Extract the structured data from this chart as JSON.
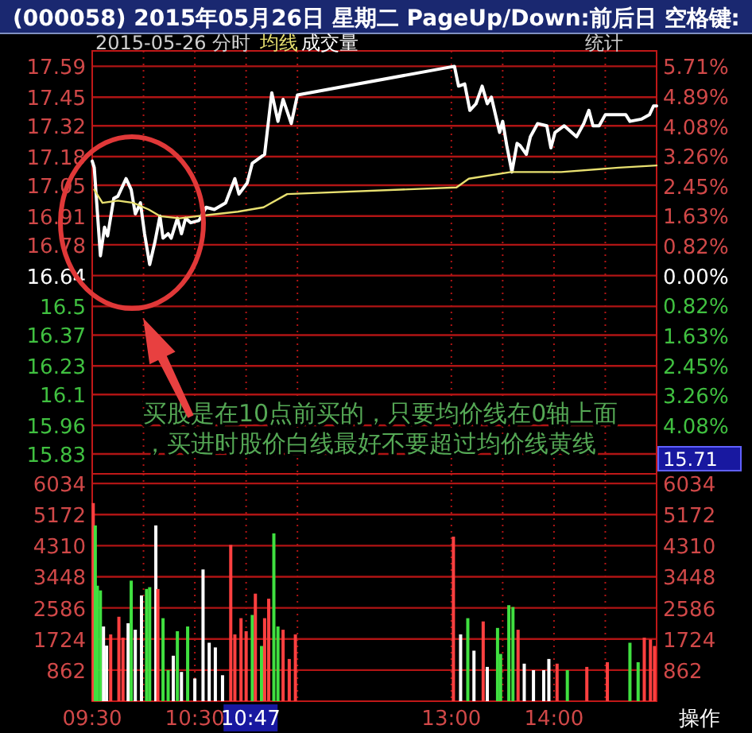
{
  "chart_data": [
    {
      "type": "line",
      "title": "(000058) 2015年05月26日 星期二 PageUp/Down:前后日 空格键:",
      "subtitle": "2015-05-26 分时",
      "legend": "top left",
      "grid": true,
      "tick_labels": "y",
      "xlim": [
        9.5,
        15
      ],
      "xticks": [
        {
          "value": 9.5,
          "label": null
        },
        {
          "value": 10,
          "label": null
        },
        {
          "value": 10.5,
          "label": null
        },
        {
          "value": 11,
          "label": null
        },
        {
          "value": 11.5,
          "label": null
        },
        {
          "value": 13,
          "label": null
        },
        {
          "value": 13.5,
          "label": null
        },
        {
          "value": 14,
          "label": null
        },
        {
          "value": 14.5,
          "label": null
        },
        {
          "value": 15,
          "label": null
        }
      ],
      "ylim": [
        15.74,
        17.66
      ],
      "yticks": [
        17.59,
        17.45,
        17.32,
        17.18,
        17.05,
        16.91,
        16.78,
        16.64,
        16.5,
        16.37,
        16.23,
        16.1,
        15.96,
        15.83
      ],
      "y2lim": [
        -5.41,
        6.13
      ],
      "y2ticks": [
        {
          "value": 5.71,
          "label": "5.71%"
        },
        {
          "value": 4.89,
          "label": "4.89%"
        },
        {
          "value": 4.08,
          "label": "4.08%"
        },
        {
          "value": 3.26,
          "label": "3.26%"
        },
        {
          "value": 2.45,
          "label": "2.45%"
        },
        {
          "value": 1.63,
          "label": "1.63%"
        },
        {
          "value": 0.82,
          "label": "0.82%"
        },
        {
          "value": 0,
          "label": "0.00%"
        },
        {
          "value": -0.82,
          "label": "0.82%"
        },
        {
          "value": -1.63,
          "label": "1.63%"
        },
        {
          "value": -2.45,
          "label": "2.45%"
        },
        {
          "value": -3.26,
          "label": "3.26%"
        },
        {
          "value": -4.08,
          "label": "4.08%"
        }
      ],
      "series": [
        {
          "color": "#ffffff",
          "x": [
            9.5,
            9.52,
            9.55,
            9.58,
            9.62,
            9.65,
            9.71,
            9.75,
            9.83,
            9.88,
            9.92,
            9.97,
            10.01,
            10.06,
            10.11,
            10.16,
            10.19,
            10.24,
            10.27,
            10.33,
            10.37,
            10.41,
            10.46,
            10.54,
            10.61,
            10.69,
            10.8,
            10.89,
            10.93,
            11.01,
            11.06,
            11.18,
            11.25,
            11.31,
            11.36,
            11.44,
            11.5,
            13.03,
            13.07,
            13.13,
            13.18,
            13.24,
            13.3,
            13.35,
            13.39,
            13.47,
            13.5,
            13.54,
            13.59,
            13.64,
            13.67,
            13.73,
            13.77,
            13.84,
            13.93,
            13.97,
            14.01,
            14.1,
            14.22,
            14.29,
            14.34,
            14.38,
            14.44,
            14.5,
            14.59,
            14.7,
            14.74,
            14.85,
            14.93,
            14.97,
            15
          ],
          "values": [
            17.16,
            17.13,
            16.93,
            16.73,
            16.86,
            16.82,
            16.99,
            17.0,
            17.08,
            17.03,
            16.92,
            16.97,
            16.83,
            16.69,
            16.79,
            16.91,
            16.81,
            16.83,
            16.81,
            16.9,
            16.83,
            16.9,
            16.88,
            16.89,
            16.95,
            16.94,
            16.97,
            17.08,
            17.01,
            17.06,
            17.15,
            17.19,
            17.47,
            17.34,
            17.44,
            17.33,
            17.46,
            17.59,
            17.5,
            17.51,
            17.39,
            17.42,
            17.5,
            17.42,
            17.45,
            17.29,
            17.34,
            17.23,
            17.11,
            17.24,
            17.23,
            17.19,
            17.27,
            17.33,
            17.32,
            17.22,
            17.29,
            17.32,
            17.27,
            17.33,
            17.39,
            17.32,
            17.32,
            17.37,
            17.37,
            17.37,
            17.34,
            17.35,
            17.37,
            17.41,
            17.41
          ]
        },
        {
          "name": "均线",
          "color": "#e8e070",
          "x": [
            9.52,
            9.6,
            9.75,
            9.9,
            10.05,
            10.16,
            10.35,
            10.53,
            10.92,
            11.17,
            11.4,
            13.05,
            13.17,
            13.58,
            14.07,
            14.63,
            15
          ],
          "values": [
            17.03,
            16.97,
            16.98,
            16.97,
            16.94,
            16.91,
            16.9,
            16.91,
            16.93,
            16.95,
            17.01,
            17.04,
            17.08,
            17.11,
            17.11,
            17.13,
            17.14
          ]
        }
      ],
      "annotations": [
        "统计",
        "15.71",
        "买股是在10点前买的，只要均价线在0轴上面，买进时股价白线最好不要超过均价线黄线"
      ]
    },
    {
      "type": "bar",
      "legend": "top left",
      "grid": true,
      "xlim": [
        9.5,
        15
      ],
      "xticks": [
        {
          "value": 9.5,
          "label": "09:30"
        },
        {
          "value": 10,
          "label": null
        },
        {
          "value": 10.5,
          "label": "10:30"
        },
        {
          "value": 11,
          "label": null
        },
        {
          "value": 11.5,
          "label": null
        },
        {
          "value": 13,
          "label": "13:00"
        },
        {
          "value": 13.5,
          "label": null
        },
        {
          "value": 14,
          "label": "14:00"
        },
        {
          "value": 14.5,
          "label": null
        },
        {
          "value": 15,
          "label": null
        }
      ],
      "ylim": [
        0,
        6300
      ],
      "yticks": [
        862,
        1724,
        2586,
        3448,
        4310,
        5172,
        6034
      ],
      "y2lim": [
        0,
        6300
      ],
      "y2ticks": [
        862,
        1724,
        2586,
        3448,
        4310,
        5172,
        6034
      ],
      "series": [
        {
          "name": "成交量",
          "x": [
            9.51,
            9.53,
            9.55,
            9.58,
            9.61,
            9.64,
            9.68,
            9.76,
            9.8,
            9.85,
            9.88,
            9.92,
            9.98,
            10.03,
            10.06,
            10.12,
            10.14,
            10.19,
            10.24,
            10.29,
            10.33,
            10.37,
            10.43,
            10.5,
            10.58,
            10.64,
            10.7,
            10.77,
            10.85,
            10.89,
            10.95,
            11,
            11.06,
            11.09,
            11.15,
            11.18,
            11.22,
            11.27,
            11.31,
            11.36,
            11.42,
            11.48,
            13.02,
            13.09,
            13.16,
            13.22,
            13.31,
            13.35,
            13.45,
            13.48,
            13.56,
            13.6,
            13.65,
            13.71,
            13.8,
            13.9,
            13.95,
            14.03,
            14.13,
            14.32,
            14.52,
            14.74,
            14.82,
            14.88,
            14.94,
            14.98
          ],
          "values": [
            5490,
            4870,
            3200,
            3070,
            2070,
            1540,
            1850,
            2340,
            1760,
            2160,
            3340,
            1980,
            2930,
            3110,
            3160,
            4870,
            3110,
            2300,
            860,
            1260,
            1940,
            810,
            2070,
            630,
            3650,
            1620,
            1490,
            720,
            4330,
            1850,
            2300,
            1940,
            2390,
            2980,
            1530,
            2300,
            2840,
            4650,
            2070,
            1980,
            1170,
            1850,
            4560,
            1850,
            2300,
            1400,
            2210,
            950,
            2030,
            1310,
            2660,
            2610,
            1980,
            1040,
            860,
            860,
            1170,
            1040,
            860,
            950,
            1080,
            1620,
            1080,
            1760,
            1710,
            1530
          ],
          "colors": [
            "#ff4040",
            "#40e040",
            "#40e040",
            "#40e040",
            "#ffffff",
            "#ffffff",
            "#ff4040",
            "#ff4040",
            "#ff4040",
            "#ffffff",
            "#40e040",
            "#ffffff",
            "#ffffff",
            "#40e040",
            "#40e040",
            "#ffffff",
            "#ff4040",
            "#40e040",
            "#40e040",
            "#ffffff",
            "#40e040",
            "#ffffff",
            "#40e040",
            "#ffffff",
            "#ffffff",
            "#ffffff",
            "#ffffff",
            "#ffffff",
            "#ff4040",
            "#ff4040",
            "#ff4040",
            "#ff4040",
            "#40e040",
            "#ff4040",
            "#40e040",
            "#ff4040",
            "#ff4040",
            "#40e040",
            "#40e040",
            "#ff4040",
            "#ff4040",
            "#ff4040",
            "#ff4040",
            "#ffffff",
            "#40e040",
            "#ffffff",
            "#ff4040",
            "#ffffff",
            "#40e040",
            "#40e040",
            "#40e040",
            "#40e040",
            "#ff4040",
            "#ffffff",
            "#ffffff",
            "#ffffff",
            "#ffffff",
            "#ff4040",
            "#40e040",
            "#ff4040",
            "#ff4040",
            "#40e040",
            "#40e040",
            "#ff4040",
            "#ff4040",
            "#ff4040"
          ]
        }
      ],
      "annotations": [
        "10:47",
        "操作"
      ]
    }
  ]
}
